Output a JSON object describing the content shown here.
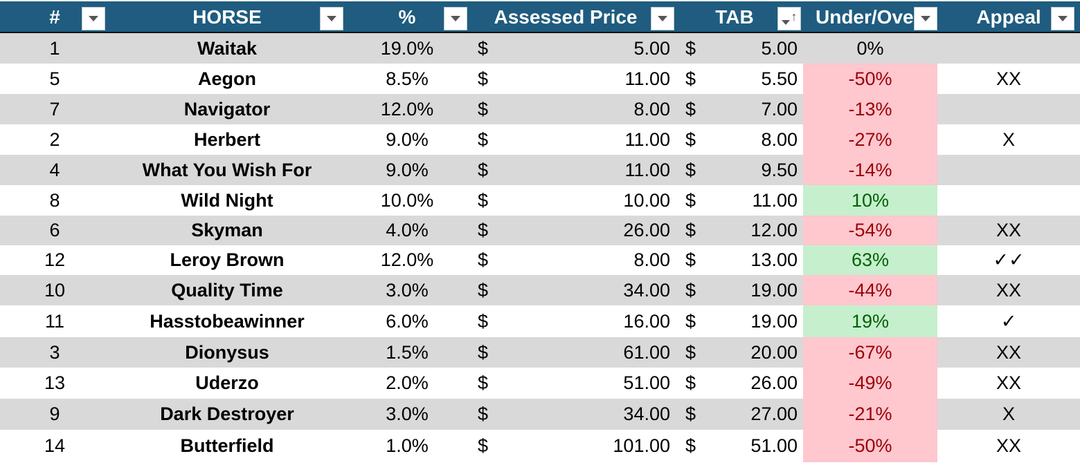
{
  "table": {
    "headers": {
      "num": "#",
      "horse": "HORSE",
      "pct": "%",
      "assessed": "Assessed Price",
      "tab": "TAB",
      "under": "Under/Ove",
      "appeal": "Appeal"
    },
    "sort_indicator": "↑",
    "currency": "$",
    "rows": [
      {
        "num": "1",
        "horse": "Waitak",
        "pct": "19.0%",
        "price": "5.00",
        "tab": "5.00",
        "under": "0%",
        "appeal": ""
      },
      {
        "num": "5",
        "horse": "Aegon",
        "pct": "8.5%",
        "price": "11.00",
        "tab": "5.50",
        "under": "-50%",
        "appeal": "XX"
      },
      {
        "num": "7",
        "horse": "Navigator",
        "pct": "12.0%",
        "price": "8.00",
        "tab": "7.00",
        "under": "-13%",
        "appeal": ""
      },
      {
        "num": "2",
        "horse": "Herbert",
        "pct": "9.0%",
        "price": "11.00",
        "tab": "8.00",
        "under": "-27%",
        "appeal": "X"
      },
      {
        "num": "4",
        "horse": "What You Wish For",
        "pct": "9.0%",
        "price": "11.00",
        "tab": "9.50",
        "under": "-14%",
        "appeal": ""
      },
      {
        "num": "8",
        "horse": "Wild Night",
        "pct": "10.0%",
        "price": "10.00",
        "tab": "11.00",
        "under": "10%",
        "appeal": ""
      },
      {
        "num": "6",
        "horse": "Skyman",
        "pct": "4.0%",
        "price": "26.00",
        "tab": "12.00",
        "under": "-54%",
        "appeal": "XX"
      },
      {
        "num": "12",
        "horse": "Leroy Brown",
        "pct": "12.0%",
        "price": "8.00",
        "tab": "13.00",
        "under": "63%",
        "appeal": "✓✓"
      },
      {
        "num": "10",
        "horse": "Quality Time",
        "pct": "3.0%",
        "price": "34.00",
        "tab": "19.00",
        "under": "-44%",
        "appeal": "XX"
      },
      {
        "num": "11",
        "horse": "Hasstobeawinner",
        "pct": "6.0%",
        "price": "16.00",
        "tab": "19.00",
        "under": "19%",
        "appeal": "✓"
      },
      {
        "num": "3",
        "horse": "Dionysus",
        "pct": "1.5%",
        "price": "61.00",
        "tab": "20.00",
        "under": "-67%",
        "appeal": "XX"
      },
      {
        "num": "13",
        "horse": "Uderzo",
        "pct": "2.0%",
        "price": "51.00",
        "tab": "26.00",
        "under": "-49%",
        "appeal": "XX"
      },
      {
        "num": "9",
        "horse": "Dark Destroyer",
        "pct": "3.0%",
        "price": "34.00",
        "tab": "27.00",
        "under": "-21%",
        "appeal": "X"
      },
      {
        "num": "14",
        "horse": "Butterfield",
        "pct": "1.0%",
        "price": "101.00",
        "tab": "51.00",
        "under": "-50%",
        "appeal": "XX"
      }
    ]
  },
  "colors": {
    "header_bg": "#1f5c7f",
    "row_alt": "#d9d9d9",
    "negative_fill": "#ffc7ce",
    "negative_text": "#9c0006",
    "positive_fill": "#c6efce",
    "positive_text": "#006100"
  }
}
